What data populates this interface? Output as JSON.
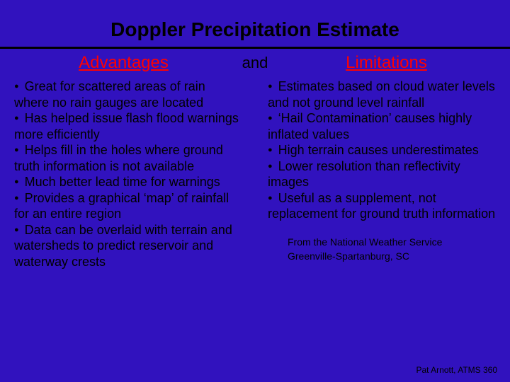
{
  "colors": {
    "background": "#3112be",
    "title": "#000000",
    "rule": "#000000",
    "heading": "#ff0000",
    "body": "#000000"
  },
  "typography": {
    "title_fontsize": 28,
    "heading_fontsize": 24,
    "body_fontsize": 18,
    "attribution_fontsize": 14,
    "footer_fontsize": 12,
    "title_family": "Arial",
    "body_family": "Comic Sans MS"
  },
  "title": "Doppler Precipitation Estimate",
  "headings": {
    "left": "Advantages",
    "mid": "and",
    "right": "Limitations"
  },
  "advantages": [
    "Great for scattered areas of rain where no rain gauges are located",
    "Has helped issue flash flood warnings more efficiently",
    "Helps fill in the holes where ground truth information is not available",
    "Much better lead time for warnings",
    "Provides a graphical ‘map’ of rainfall for an entire region",
    "Data can be overlaid with terrain and watersheds to predict reservoir and waterway crests"
  ],
  "limitations": [
    "Estimates based on cloud water levels and not ground level rainfall",
    "‘Hail Contamination’ causes highly inflated values",
    "High terrain causes underestimates",
    "Lower resolution than reflectivity images",
    "Useful as a supplement, not replacement for ground truth information"
  ],
  "attribution": {
    "line1": "From the National Weather Service",
    "line2": "Greenville-Spartanburg, SC"
  },
  "footer": "Pat Arnott, ATMS 360"
}
